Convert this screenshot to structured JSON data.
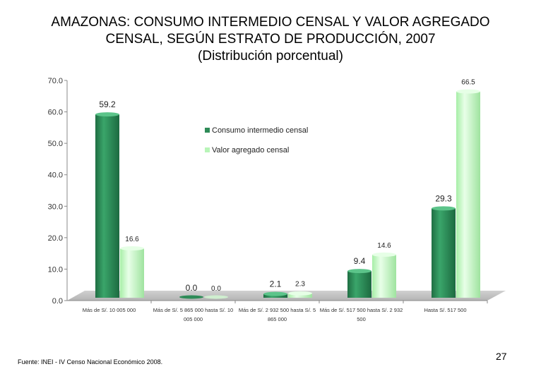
{
  "page": {
    "title_line1": "AMAZONAS: CONSUMO INTERMEDIO CENSAL Y VALOR AGREGADO",
    "title_line2": "CENSAL, SEGÚN ESTRATO DE PRODUCCIÓN, 2007",
    "subtitle": "(Distribución porcentual)",
    "source": "Fuente: INEI - IV Censo Nacional Económico 2008.",
    "page_number": "27"
  },
  "chart_data": {
    "type": "bar",
    "title": "AMAZONAS: CONSUMO INTERMEDIO CENSAL Y VALOR AGREGADO CENSAL, SEGÚN ESTRATO DE PRODUCCIÓN, 2007",
    "subtitle": "(Distribución porcentual)",
    "xlabel": "",
    "ylabel": "",
    "ylim": [
      0,
      70
    ],
    "yticks": [
      "0.0",
      "10.0",
      "20.0",
      "30.0",
      "40.0",
      "50.0",
      "60.0",
      "70.0"
    ],
    "categories": [
      [
        "Más de S/. 10 005 000"
      ],
      [
        "Más de S/. 5 865 000 hasta S/. 10",
        "005 000"
      ],
      [
        "Más de S/. 2 932 500 hasta S/. 5",
        "865 000"
      ],
      [
        "Más de S/. 517 500 hasta S/. 2 932",
        "500"
      ],
      [
        "Hasta S/. 517 500"
      ]
    ],
    "series": [
      {
        "name": "Consumo intermedio censal",
        "color": "#2e8b57",
        "values": [
          59.2,
          0.0,
          2.1,
          9.4,
          29.3
        ],
        "labels": [
          "59.2",
          "0.0",
          "2.1",
          "9.4",
          "29.3"
        ]
      },
      {
        "name": "Valor agregado censal",
        "color": "#b8f5b8",
        "values": [
          16.6,
          0.0,
          2.3,
          14.6,
          66.5
        ],
        "labels": [
          "16.6",
          "0.0",
          "2.3",
          "14.6",
          "66.5"
        ]
      }
    ],
    "legend_position": "center"
  }
}
